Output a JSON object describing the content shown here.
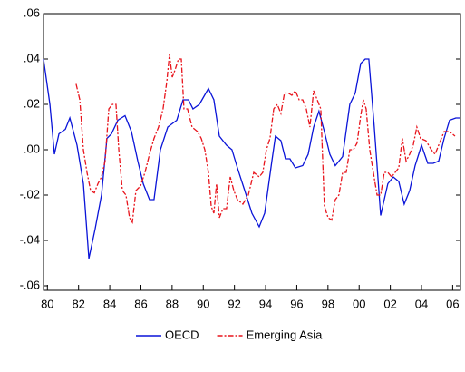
{
  "chart_data": {
    "type": "line",
    "xlim": [
      1979.75,
      2006.5
    ],
    "ylim": [
      -0.062,
      0.06
    ],
    "xticks": [
      {
        "value": 1980,
        "label": "80"
      },
      {
        "value": 1982,
        "label": "82"
      },
      {
        "value": 1984,
        "label": "84"
      },
      {
        "value": 1986,
        "label": "86"
      },
      {
        "value": 1988,
        "label": "88"
      },
      {
        "value": 1990,
        "label": "90"
      },
      {
        "value": 1992,
        "label": "92"
      },
      {
        "value": 1994,
        "label": "94"
      },
      {
        "value": 1996,
        "label": "96"
      },
      {
        "value": 1998,
        "label": "98"
      },
      {
        "value": 2000,
        "label": "00"
      },
      {
        "value": 2002,
        "label": "02"
      },
      {
        "value": 2004,
        "label": "04"
      },
      {
        "value": 2006,
        "label": "06"
      }
    ],
    "yticks": [
      {
        "value": 0.06,
        "label": ".06"
      },
      {
        "value": 0.04,
        "label": ".04"
      },
      {
        "value": 0.02,
        "label": ".02"
      },
      {
        "value": 0,
        "label": ".00"
      },
      {
        "value": -0.02,
        "label": "-.02"
      },
      {
        "value": -0.04,
        "label": "-.04"
      },
      {
        "value": -0.06,
        "label": "-.06"
      }
    ],
    "grid": false,
    "legend": "bottom",
    "series": [
      {
        "name": "OECD",
        "color": "#0a14d8",
        "dash": "solid",
        "x": [
          1979.75,
          1980.16,
          1980.45,
          1980.74,
          1981.15,
          1981.44,
          1981.9,
          1982.31,
          1982.66,
          1983.06,
          1983.47,
          1983.82,
          1984.11,
          1984.52,
          1984.98,
          1985.39,
          1985.8,
          1986.15,
          1986.55,
          1986.84,
          1987.25,
          1987.72,
          1988.3,
          1988.7,
          1989.05,
          1989.34,
          1989.75,
          1990.33,
          1990.68,
          1991.03,
          1991.49,
          1991.84,
          1992.19,
          1992.66,
          1993.12,
          1993.59,
          1993.94,
          1994.4,
          1994.63,
          1994.98,
          1995.27,
          1995.56,
          1995.91,
          1996.38,
          1996.73,
          1997.08,
          1997.42,
          1997.77,
          1998.12,
          1998.47,
          1998.94,
          1999.4,
          1999.75,
          2000.1,
          2000.39,
          2000.62,
          2000.97,
          2001.38,
          2001.84,
          2002.19,
          2002.54,
          2002.89,
          2003.24,
          2003.59,
          2004.0,
          2004.4,
          2004.75,
          2005.1,
          2005.45,
          2005.8,
          2006.2,
          2006.49
        ],
        "values": [
          0.04,
          0.02,
          -0.002,
          0.007,
          0.009,
          0.014,
          0.002,
          -0.015,
          -0.048,
          -0.035,
          -0.02,
          0.005,
          0.007,
          0.013,
          0.015,
          0.008,
          -0.005,
          -0.015,
          -0.022,
          -0.022,
          0.0,
          0.01,
          0.013,
          0.022,
          0.022,
          0.018,
          0.02,
          0.027,
          0.022,
          0.006,
          0.002,
          0.0,
          -0.008,
          -0.018,
          -0.028,
          -0.034,
          -0.028,
          -0.005,
          0.006,
          0.004,
          -0.004,
          -0.004,
          -0.008,
          -0.007,
          -0.002,
          0.01,
          0.017,
          0.008,
          -0.002,
          -0.007,
          -0.003,
          0.02,
          0.025,
          0.038,
          0.04,
          0.04,
          0.01,
          -0.029,
          -0.015,
          -0.012,
          -0.014,
          -0.024,
          -0.018,
          -0.007,
          0.002,
          -0.006,
          -0.006,
          -0.005,
          0.005,
          0.013,
          0.014,
          0.014
        ]
      },
      {
        "name": "Emerging Asia",
        "color": "#e8141c",
        "dash": "dashdot",
        "x": [
          1981.84,
          1982.08,
          1982.31,
          1982.54,
          1982.77,
          1983.01,
          1983.24,
          1983.47,
          1983.7,
          1983.94,
          1984.17,
          1984.4,
          1984.58,
          1984.81,
          1985.04,
          1985.27,
          1985.45,
          1985.68,
          1985.97,
          1986.26,
          1986.55,
          1986.84,
          1987.13,
          1987.42,
          1987.66,
          1987.83,
          1988.01,
          1988.18,
          1988.41,
          1988.59,
          1988.76,
          1988.99,
          1989.28,
          1989.63,
          1989.87,
          1990.1,
          1990.33,
          1990.51,
          1990.68,
          1990.85,
          1991.03,
          1991.26,
          1991.49,
          1991.73,
          1991.96,
          1992.19,
          1992.54,
          1992.89,
          1993.24,
          1993.59,
          1993.82,
          1994.05,
          1994.28,
          1994.52,
          1994.75,
          1994.98,
          1995.21,
          1995.45,
          1995.68,
          1995.91,
          1996.15,
          1996.38,
          1996.61,
          1996.84,
          1997.08,
          1997.31,
          1997.54,
          1997.77,
          1998.01,
          1998.24,
          1998.47,
          1998.7,
          1998.94,
          1999.17,
          1999.4,
          1999.63,
          1999.87,
          2000.1,
          2000.27,
          2000.45,
          2000.68,
          2000.91,
          2001.15,
          2001.38,
          2001.61,
          2001.84,
          2002.08,
          2002.31,
          2002.54,
          2002.77,
          2003.01,
          2003.24,
          2003.47,
          2003.7,
          2003.94,
          2004.28,
          2004.63,
          2004.87,
          2005.1,
          2005.45,
          2005.8,
          2006.15
        ],
        "values": [
          0.029,
          0.022,
          0.0,
          -0.01,
          -0.018,
          -0.019,
          -0.015,
          -0.012,
          -0.005,
          0.018,
          0.02,
          0.02,
          0.0,
          -0.018,
          -0.02,
          -0.03,
          -0.032,
          -0.018,
          -0.016,
          -0.01,
          -0.002,
          0.005,
          0.01,
          0.018,
          0.03,
          0.042,
          0.032,
          0.035,
          0.04,
          0.04,
          0.018,
          0.018,
          0.01,
          0.008,
          0.005,
          0.0,
          -0.01,
          -0.025,
          -0.028,
          -0.015,
          -0.03,
          -0.026,
          -0.026,
          -0.012,
          -0.018,
          -0.022,
          -0.024,
          -0.02,
          -0.01,
          -0.012,
          -0.01,
          0.0,
          0.005,
          0.018,
          0.02,
          0.016,
          0.025,
          0.025,
          0.024,
          0.026,
          0.022,
          0.022,
          0.018,
          0.01,
          0.026,
          0.022,
          0.018,
          -0.025,
          -0.03,
          -0.031,
          -0.022,
          -0.02,
          -0.01,
          -0.01,
          0.0,
          0.0,
          0.003,
          0.015,
          0.022,
          0.018,
          0.0,
          -0.01,
          -0.02,
          -0.02,
          -0.01,
          -0.01,
          -0.012,
          -0.01,
          -0.008,
          0.005,
          -0.005,
          -0.002,
          0.002,
          0.01,
          0.005,
          0.004,
          0.0,
          -0.002,
          0.002,
          0.008,
          0.008,
          0.006
        ]
      }
    ]
  }
}
